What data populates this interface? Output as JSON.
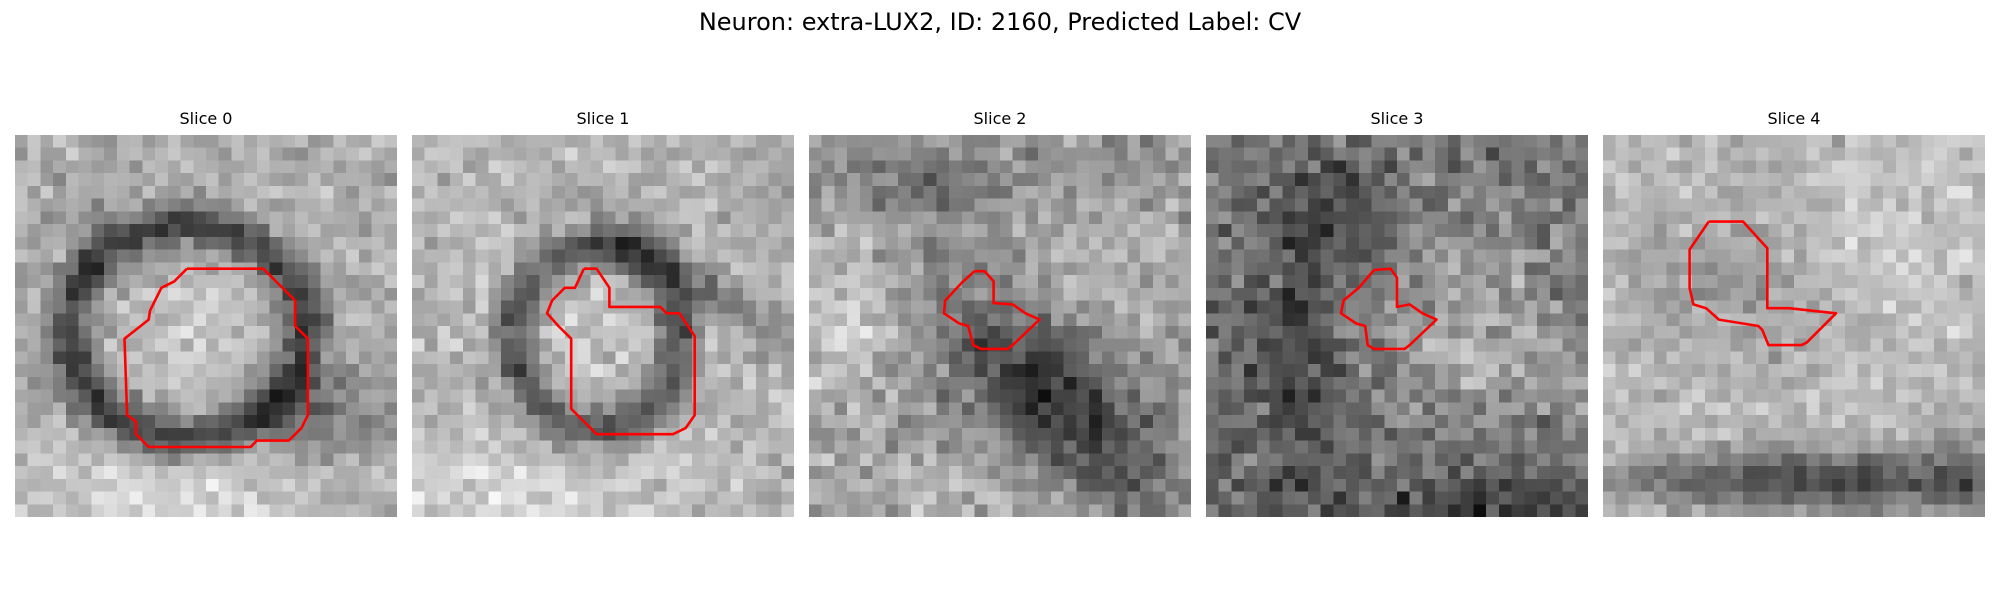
{
  "figure": {
    "title": "Neuron: extra-LUX2, ID: 2160, Predicted Label: CV",
    "contour_color": "#ff0000",
    "colormap": "grayscale"
  },
  "slices": [
    {
      "label": "Slice 0",
      "grid_size": 30,
      "description": "grayscale EM patch with dark ring around bright round body; red contour traces body"
    },
    {
      "label": "Slice 1",
      "grid_size": 30,
      "description": "grayscale EM patch with dark ring; red contour traces inner body"
    },
    {
      "label": "Slice 2",
      "grid_size": 30,
      "description": "grayscale EM patch with dark diagonal band; small red contour"
    },
    {
      "label": "Slice 3",
      "grid_size": 30,
      "description": "noisy grayscale EM patch; small red contour"
    },
    {
      "label": "Slice 4",
      "grid_size": 30,
      "description": "light grayscale EM patch with dark bottom band; red contour upper-left"
    }
  ]
}
